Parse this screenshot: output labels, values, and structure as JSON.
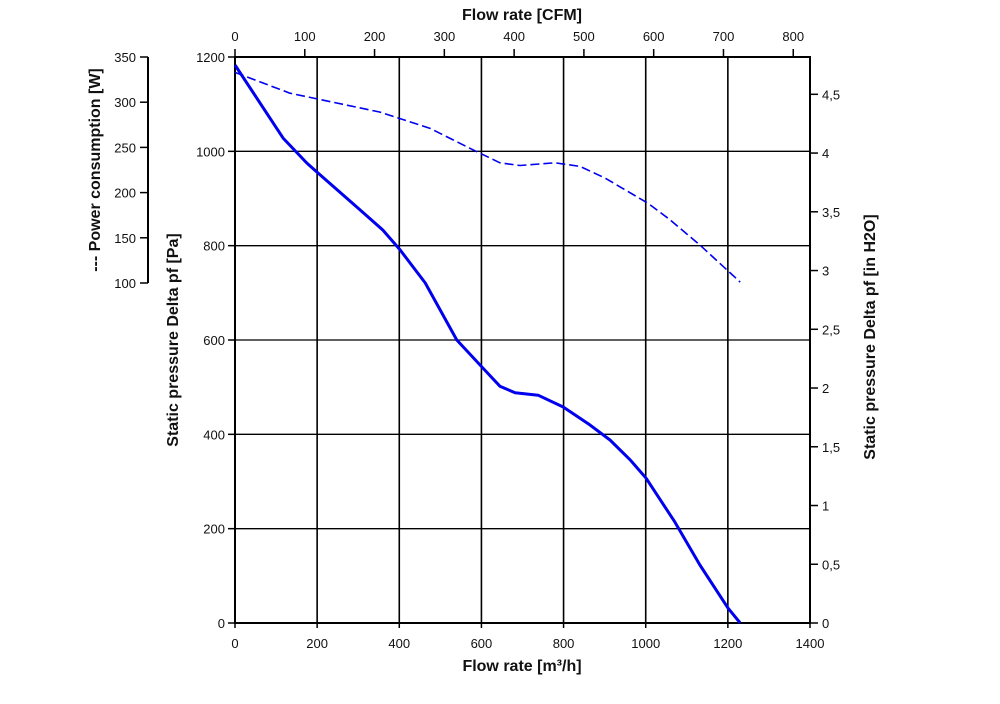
{
  "chart_data": {
    "type": "line",
    "title_top": "Flow rate [CFM]",
    "xlabel": "Flow rate [m³/h]",
    "ylabel_left": "Static pressure Delta pf [Pa]",
    "ylabel_power": "--- Power consumption [W]",
    "ylabel_right": "Static pressure Delta pf [in H2O]",
    "xlim": [
      0,
      1400
    ],
    "ylim": [
      0,
      1200
    ],
    "power_lim": [
      100,
      350
    ],
    "cfm_lim": [
      0,
      800
    ],
    "grid": true,
    "x_ticks": [
      "0",
      "200",
      "400",
      "600",
      "800",
      "1000",
      "1200",
      "1400"
    ],
    "y_ticks": [
      "0",
      "200",
      "400",
      "600",
      "800",
      "1000",
      "1200"
    ],
    "cfm_ticks": [
      "0",
      "100",
      "200",
      "300",
      "400",
      "500",
      "600",
      "700",
      "800"
    ],
    "power_ticks": [
      "100",
      "150",
      "200",
      "250",
      "300",
      "350"
    ],
    "inh2o_ticks": [
      "0",
      "0,5",
      "1",
      "1,5",
      "2",
      "2,5",
      "3",
      "3,5",
      "4",
      "4,5"
    ],
    "colors": {
      "series": "#0000ee",
      "grid": "#000000"
    },
    "series": [
      {
        "name": "Static pressure [Pa]",
        "style": "solid",
        "axis": "Pa",
        "x": [
          0,
          117,
          175,
          202,
          304,
          360,
          402,
          463,
          540,
          601,
          645,
          682,
          738,
          799,
          864,
          913,
          962,
          1001,
          1071,
          1132,
          1200,
          1230
        ],
        "y": [
          1183,
          1028,
          975,
          954,
          876,
          833,
          791,
          721,
          600,
          543,
          502,
          488,
          483,
          458,
          420,
          388,
          346,
          307,
          214,
          123,
          32,
          0
        ]
      },
      {
        "name": "Power consumption [W]",
        "style": "dashed",
        "axis": "W",
        "x": [
          0,
          134,
          207,
          353,
          475,
          572,
          645,
          694,
          779,
          840,
          901,
          950,
          1006,
          1059,
          1132,
          1230
        ],
        "y": [
          333,
          310,
          303,
          289,
          271,
          249,
          233,
          230,
          233,
          229,
          216,
          203,
          188,
          170,
          142,
          101
        ]
      }
    ]
  }
}
